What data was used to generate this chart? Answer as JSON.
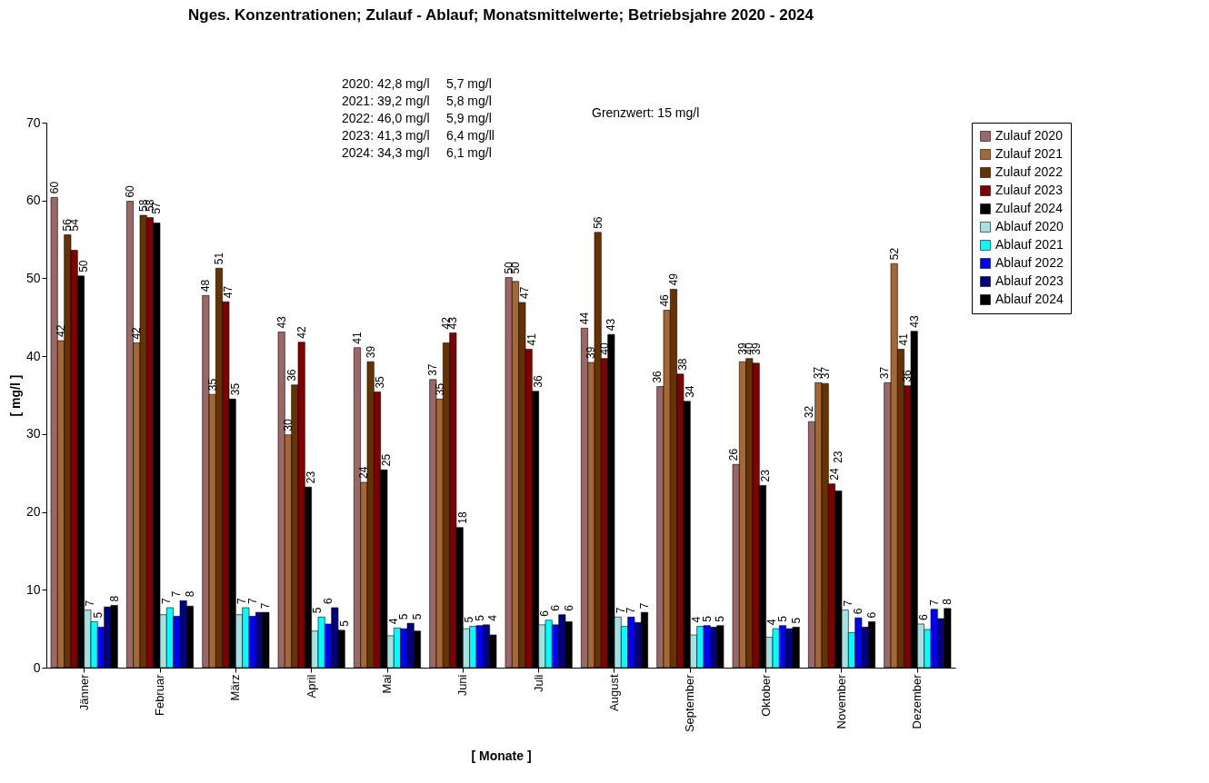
{
  "chart_data": {
    "type": "bar",
    "title": "Nges. Konzentrationen; Zulauf - Ablauf; Monatsmittelwerte;  Betriebsjahre 2020 - 2024",
    "xlabel": "[ Monate ]",
    "ylabel": "[ mg/l ]",
    "categories": [
      "Jänner",
      "Februar",
      "März",
      "April",
      "Mai",
      "Juni",
      "Juli",
      "August",
      "September",
      "Oktober",
      "November",
      "Dezember"
    ],
    "ylim": [
      0,
      70
    ],
    "yticks": [
      0,
      10,
      20,
      30,
      40,
      50,
      60,
      70
    ],
    "legend": "top right",
    "annotations": [
      "2020: 42,8 mg/l",
      "2021: 39,2 mg/l",
      "2022: 46,0 mg/l",
      "2023: 41,3 mg/l",
      "2024: 34,3 mg/l",
      "5,7 mg/l",
      "5,8 mg/l",
      "5,9 mg/l",
      "6,4 mg/ll",
      "6,1 mg/l",
      "Grenzwert:  15 mg/l"
    ],
    "series": [
      {
        "name": "Zulauf 2020",
        "color": "#9c6767",
        "values": [
          60.4,
          59.9,
          47.8,
          43.1,
          41.1,
          37.0,
          50.1,
          43.6,
          36.1,
          26.1,
          31.6,
          36.6
        ],
        "value_labels": [
          "60",
          "60",
          "48",
          "43",
          "41",
          "37",
          "50",
          "44",
          "36",
          "26",
          "32",
          "37"
        ]
      },
      {
        "name": "Zulauf 2021",
        "color": "#a36834",
        "values": [
          42.0,
          41.7,
          35.1,
          29.9,
          23.8,
          34.5,
          49.6,
          39.2,
          45.9,
          39.3,
          36.6,
          51.9
        ],
        "value_labels": [
          "42",
          "42",
          "35",
          "30",
          "24",
          "35",
          "50",
          "39",
          "46",
          "39",
          "37",
          "52"
        ]
      },
      {
        "name": "Zulauf 2022",
        "color": "#663300",
        "values": [
          55.6,
          58.1,
          51.3,
          36.3,
          39.3,
          41.7,
          46.9,
          55.9,
          48.6,
          39.7,
          36.5,
          40.9
        ],
        "value_labels": [
          "56",
          "58",
          "51",
          "36",
          "39",
          "42",
          "47",
          "56",
          "49",
          "40",
          "37",
          "41"
        ]
      },
      {
        "name": "Zulauf 2023",
        "color": "#800000",
        "values": [
          53.6,
          57.8,
          47.0,
          41.8,
          35.4,
          43.0,
          40.9,
          39.7,
          37.7,
          39.1,
          23.6,
          36.2
        ],
        "value_labels": [
          "54",
          "58",
          "47",
          "42",
          "35",
          "43",
          "41",
          "40",
          "38",
          "39",
          "24",
          "36"
        ]
      },
      {
        "name": "Zulauf 2024",
        "color": "#000000",
        "values": [
          50.3,
          57.1,
          34.5,
          23.2,
          25.4,
          18.0,
          35.5,
          42.8,
          34.2,
          23.4,
          22.7,
          43.2
        ],
        "value_labels": [
          "50",
          "57",
          "35",
          "23",
          "25",
          "18",
          "36",
          "43",
          "34",
          "23",
          "23",
          "43"
        ]
      },
      {
        "name": "Ablauf 2020",
        "color": "#a6e0e0",
        "values": [
          7.4,
          6.8,
          6.8,
          4.7,
          4.1,
          5.0,
          5.5,
          6.5,
          4.2,
          3.9,
          7.4,
          5.6
        ],
        "value_labels": [
          "7",
          "7",
          "7",
          "5",
          "4",
          "5",
          "6",
          "7",
          "4",
          "4",
          "7",
          "6"
        ]
      },
      {
        "name": "Ablauf 2021",
        "color": "#00ffff",
        "values": [
          5.9,
          7.7,
          7.7,
          6.5,
          5.1,
          5.3,
          6.1,
          5.3,
          5.3,
          5.0,
          4.5,
          4.9
        ],
        "value_labels": [
          null,
          null,
          null,
          null,
          null,
          null,
          null,
          null,
          null,
          null,
          null,
          null
        ]
      },
      {
        "name": "Ablauf 2022",
        "color": "#0000ff",
        "values": [
          5.2,
          6.6,
          6.6,
          5.6,
          5.0,
          5.4,
          5.5,
          6.5,
          5.4,
          5.4,
          6.4,
          7.5
        ],
        "value_labels": [
          "5",
          "7",
          "7",
          "6",
          "5",
          "5",
          "6",
          "7",
          "5",
          "5",
          "6",
          "7"
        ]
      },
      {
        "name": "Ablauf 2023",
        "color": "#000080",
        "values": [
          7.8,
          8.6,
          7.1,
          7.7,
          5.7,
          5.5,
          6.8,
          5.8,
          5.2,
          5.0,
          5.2,
          6.3
        ],
        "value_labels": [
          null,
          null,
          null,
          null,
          null,
          null,
          null,
          null,
          null,
          null,
          null,
          null
        ]
      },
      {
        "name": "Ablauf 2024",
        "color": "#000000",
        "values": [
          8.0,
          7.9,
          7.1,
          4.8,
          4.7,
          4.2,
          5.9,
          7.1,
          5.4,
          5.2,
          5.9,
          7.6
        ],
        "value_labels": [
          "8",
          "8",
          "7",
          "5",
          "5",
          "4",
          "6",
          "7",
          "5",
          "5",
          "6",
          "8"
        ]
      }
    ]
  }
}
